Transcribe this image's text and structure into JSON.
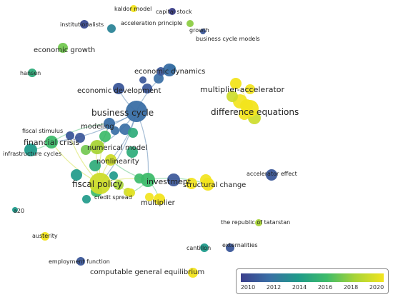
{
  "map": {
    "nodes": [
      {
        "id": "kaldor",
        "label": "kaldor model",
        "year": 2020
      },
      {
        "id": "capital",
        "label": "capital stock",
        "year": 2010
      },
      {
        "id": "institutionalists",
        "label": "institutionalists",
        "year": 2010.5
      },
      {
        "id": "accel_principle",
        "label": "acceleration principle",
        "year": 2013
      },
      {
        "id": "growth",
        "label": "growth",
        "year": 2017.5
      },
      {
        "id": "bcm",
        "label": "business cycle models",
        "year": 2011
      },
      {
        "id": "economic_growth",
        "label": "economic growth",
        "year": 2017
      },
      {
        "id": "hansen",
        "label": "hansen",
        "year": 2015
      },
      {
        "id": "economic_dynamics",
        "label": "economic dynamics",
        "year": 2012
      },
      {
        "id": "economic_development",
        "label": "economic development",
        "year": 2011
      },
      {
        "id": "multiplier_accel",
        "label": "multiplier-accelerator",
        "year": 2020
      },
      {
        "id": "business_cycle",
        "label": "business cycle",
        "year": 2012
      },
      {
        "id": "difference_equations",
        "label": "difference equations",
        "year": 2020
      },
      {
        "id": "fiscal_stimulus",
        "label": "fiscal stimulus",
        "year": 2011
      },
      {
        "id": "modeling",
        "label": "modeling",
        "year": 2012
      },
      {
        "id": "financial_crisis",
        "label": "financial crisis",
        "year": 2016
      },
      {
        "id": "infrastructure",
        "label": "infrastructure cycles",
        "year": 2014
      },
      {
        "id": "numerical_model",
        "label": "numerical model",
        "year": 2018
      },
      {
        "id": "nonlinearity",
        "label": "nonlinearity",
        "year": 2019
      },
      {
        "id": "fiscal_policy",
        "label": "fiscal policy",
        "year": 2019
      },
      {
        "id": "investment",
        "label": "investment",
        "year": 2016
      },
      {
        "id": "structural_change",
        "label": "structural change",
        "year": 2020
      },
      {
        "id": "accelerator_effect",
        "label": "accelerator effect",
        "year": 2011
      },
      {
        "id": "credit_spread",
        "label": "credit spread",
        "year": 2019.5
      },
      {
        "id": "multiplier",
        "label": "multiplier",
        "year": 2020
      },
      {
        "id": "a20",
        "label": "a20",
        "year": 2014
      },
      {
        "id": "tatarstan",
        "label": "the republic of tatarstan",
        "year": 2018
      },
      {
        "id": "austerity",
        "label": "austerity",
        "year": 2020
      },
      {
        "id": "externalities",
        "label": "externalities",
        "year": 2011
      },
      {
        "id": "cantillon",
        "label": "cantillon",
        "year": 2014
      },
      {
        "id": "employment_function",
        "label": "employment function",
        "year": 2011
      },
      {
        "id": "cge",
        "label": "computable general equilibrium",
        "year": 2020
      }
    ],
    "edges": [
      [
        "business_cycle",
        "economic_development"
      ],
      [
        "business_cycle",
        "economic_dynamics"
      ],
      [
        "business_cycle",
        "investment"
      ],
      [
        "business_cycle",
        "fiscal_policy"
      ],
      [
        "business_cycle",
        "modeling"
      ],
      [
        "business_cycle",
        "financial_crisis"
      ],
      [
        "business_cycle",
        "numerical_model"
      ],
      [
        "business_cycle",
        "nonlinearity"
      ],
      [
        "fiscal_policy",
        "investment"
      ],
      [
        "fiscal_policy",
        "financial_crisis"
      ],
      [
        "fiscal_policy",
        "numerical_model"
      ],
      [
        "fiscal_policy",
        "nonlinearity"
      ],
      [
        "fiscal_policy",
        "modeling"
      ],
      [
        "fiscal_policy",
        "credit_spread"
      ],
      [
        "fiscal_policy",
        "fiscal_stimulus"
      ],
      [
        "investment",
        "structural_change"
      ],
      [
        "investment",
        "multiplier"
      ],
      [
        "investment",
        "credit_spread"
      ],
      [
        "investment",
        "nonlinearity"
      ],
      [
        "financial_crisis",
        "infrastructure"
      ],
      [
        "financial_crisis",
        "modeling"
      ],
      [
        "modeling",
        "numerical_model"
      ],
      [
        "multiplier_accel",
        "difference_equations"
      ]
    ]
  },
  "legend": {
    "ticks": [
      "2010",
      "2012",
      "2014",
      "2016",
      "2018",
      "2020"
    ],
    "colors": [
      "#3b3f8c",
      "#3a6fa5",
      "#1f9a8a",
      "#3dbb6a",
      "#a8d437",
      "#f2e41e"
    ]
  }
}
